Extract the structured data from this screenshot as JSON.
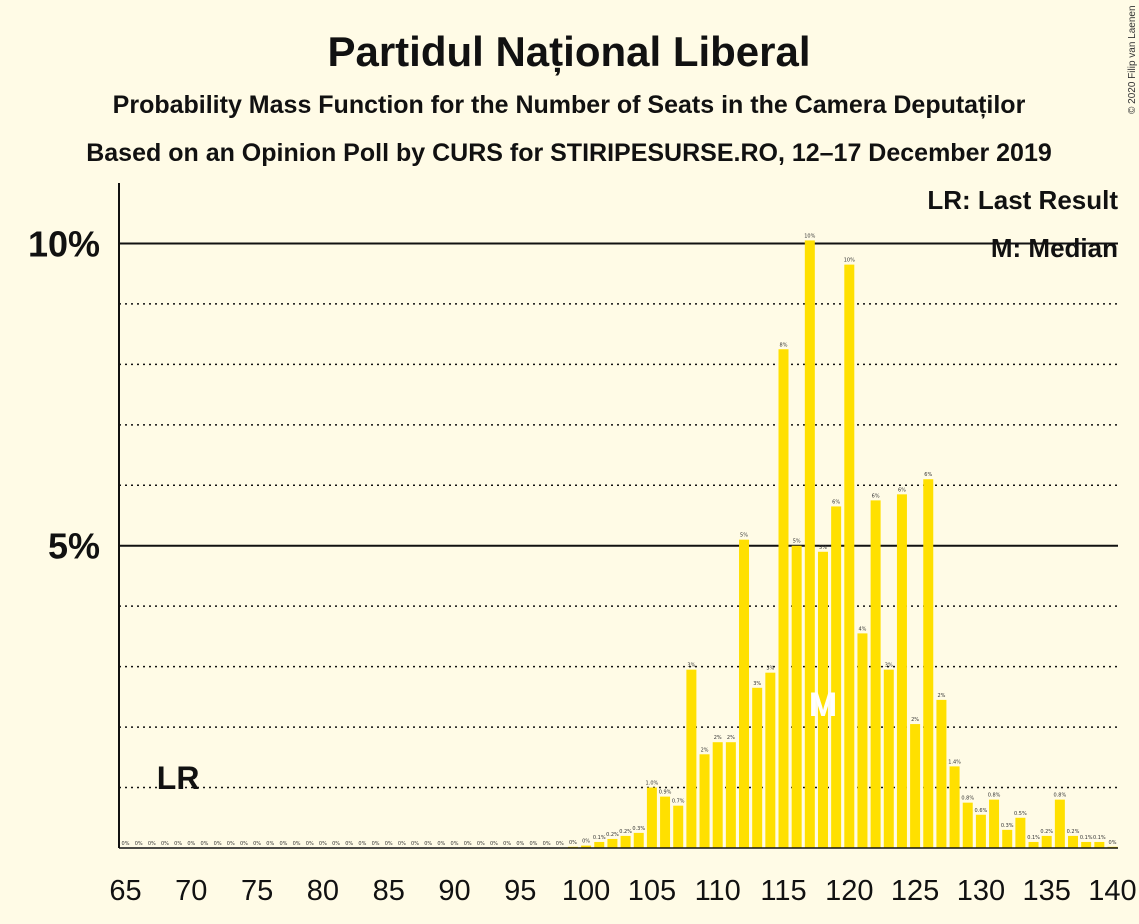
{
  "chart_data": {
    "type": "bar",
    "title": "Partidul Național Liberal",
    "subtitle": "Probability Mass Function for the Number of Seats in the Camera Deputaților",
    "subtitle2": "Based on an Opinion Poll by CURS for STIRIPESURSE.RO, 12–17 December 2019",
    "copyright": "© 2020 Filip van Laenen",
    "legend": {
      "lr": "LR: Last Result",
      "median": "M: Median"
    },
    "markers": {
      "last_result_label": "LR",
      "last_result_seat": 69,
      "median_label": "M",
      "median_seat": 118
    },
    "y_axis": {
      "ticks": [
        {
          "value": 5,
          "label": "5%"
        },
        {
          "value": 10,
          "label": "10%"
        }
      ],
      "ylim": [
        0,
        11
      ]
    },
    "x_axis": {
      "xlim": [
        65,
        140
      ],
      "tick_labels": [
        "65",
        "70",
        "75",
        "80",
        "85",
        "90",
        "95",
        "100",
        "105",
        "110",
        "115",
        "120",
        "125",
        "130",
        "135",
        "140"
      ]
    },
    "colors": {
      "bar": "#ffe000",
      "background": "#fffbe6",
      "axis": "#111111"
    },
    "seats": [
      65,
      66,
      67,
      68,
      69,
      70,
      71,
      72,
      73,
      74,
      75,
      76,
      77,
      78,
      79,
      80,
      81,
      82,
      83,
      84,
      85,
      86,
      87,
      88,
      89,
      90,
      91,
      92,
      93,
      94,
      95,
      96,
      97,
      98,
      99,
      100,
      101,
      102,
      103,
      104,
      105,
      106,
      107,
      108,
      109,
      110,
      111,
      112,
      113,
      114,
      115,
      116,
      117,
      118,
      119,
      120,
      121,
      122,
      123,
      124,
      125,
      126,
      127,
      128,
      129,
      130,
      131,
      132,
      133,
      134,
      135,
      136,
      137,
      138,
      139,
      140
    ],
    "values": [
      0,
      0,
      0,
      0,
      0,
      0,
      0,
      0,
      0,
      0,
      0,
      0,
      0,
      0,
      0,
      0,
      0,
      0,
      0,
      0,
      0,
      0,
      0,
      0,
      0,
      0,
      0,
      0,
      0,
      0,
      0,
      0,
      0,
      0,
      0.02,
      0.04,
      0.1,
      0.15,
      0.2,
      0.25,
      1.0,
      0.85,
      0.7,
      2.95,
      1.55,
      1.75,
      1.75,
      5.1,
      2.65,
      2.9,
      8.25,
      5.0,
      10.05,
      4.9,
      5.65,
      9.65,
      3.55,
      5.75,
      2.95,
      5.85,
      2.05,
      6.1,
      2.45,
      1.35,
      0.75,
      0.55,
      0.8,
      0.3,
      0.5,
      0.1,
      0.2,
      0.8,
      0.2,
      0.1,
      0.1,
      0.02
    ],
    "data_labels": [
      "0%",
      "0%",
      "0%",
      "0%",
      "0%",
      "0%",
      "0%",
      "0%",
      "0%",
      "0%",
      "0%",
      "0%",
      "0%",
      "0%",
      "0%",
      "0%",
      "0%",
      "0%",
      "0%",
      "0%",
      "0%",
      "0%",
      "0%",
      "0%",
      "0%",
      "0%",
      "0%",
      "0%",
      "0%",
      "0%",
      "0%",
      "0%",
      "0%",
      "0%",
      "0%",
      "0%",
      "0.1%",
      "0.2%",
      "0.2%",
      "0.3%",
      "1.0%",
      "0.9%",
      "0.7%",
      "3%",
      "2%",
      "2%",
      "2%",
      "5%",
      "3%",
      "3%",
      "8%",
      "5%",
      "10%",
      "5%",
      "6%",
      "10%",
      "4%",
      "6%",
      "3%",
      "6%",
      "2%",
      "6%",
      "2%",
      "1.4%",
      "0.8%",
      "0.6%",
      "0.8%",
      "0.3%",
      "0.5%",
      "0.1%",
      "0.2%",
      "0.8%",
      "0.2%",
      "0.1%",
      "0.1%",
      "0%"
    ]
  }
}
